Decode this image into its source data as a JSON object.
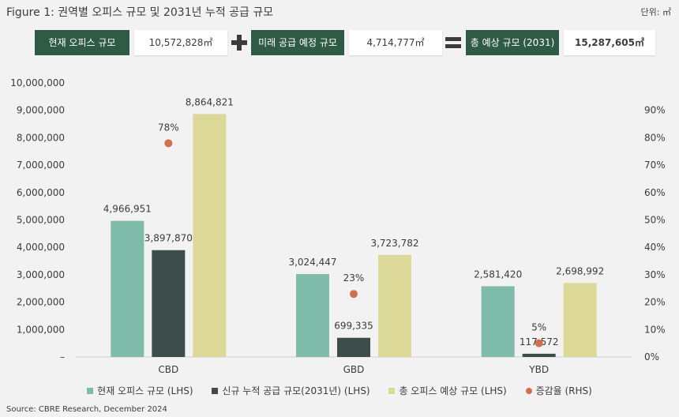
{
  "title": "Figure 1: 권역별 오피스 규모 및 2031년 누적 공급 규모",
  "unit_label": "단위: ㎡",
  "summary": {
    "current_label": "현재 오피스 규모",
    "current_value": "10,572,828㎡",
    "future_label": "미래 공급 예정 규모",
    "future_value": "4,714,777㎡",
    "total_label": "총 예상 규모 (2031)",
    "total_value": "15,287,605㎡"
  },
  "chart_data": {
    "type": "bar",
    "categories": [
      "CBD",
      "GBD",
      "YBD"
    ],
    "series": [
      {
        "name": "현재 오피스 규모 (LHS)",
        "values": [
          4966951,
          3024447,
          2581420
        ],
        "labels": [
          "4,966,951",
          "3,024,447",
          "2,581,420"
        ],
        "color": "#7ebba9"
      },
      {
        "name": "신규 누적 공급 규모(2031년) (LHS)",
        "values": [
          3897870,
          699335,
          117572
        ],
        "labels": [
          "3,897,870",
          "699,335",
          "117,572"
        ],
        "color": "#3d4d4a"
      },
      {
        "name": "총 오피스 예상 규모 (LHS)",
        "values": [
          8864821,
          3723782,
          2698992
        ],
        "labels": [
          "8,864,821",
          "3,723,782",
          "2,698,992"
        ],
        "color": "#dcd898"
      }
    ],
    "rate_series": {
      "name": "증감율 (RHS)",
      "values": [
        78,
        23,
        5
      ],
      "labels": [
        "78%",
        "23%",
        "5%"
      ],
      "color": "#d46f4d"
    },
    "left_ticks": [
      "–",
      "1,000,000",
      "2,000,000",
      "3,000,000",
      "4,000,000",
      "5,000,000",
      "6,000,000",
      "7,000,000",
      "8,000,000",
      "9,000,000",
      "10,000,000"
    ],
    "right_ticks": [
      "0%",
      "10%",
      "20%",
      "30%",
      "40%",
      "50%",
      "60%",
      "70%",
      "80%",
      "90%"
    ],
    "ylim_left": [
      0,
      10000000
    ],
    "ylim_right": [
      0,
      90
    ],
    "grid": false
  },
  "source": "Source: CBRE Research, December 2024"
}
